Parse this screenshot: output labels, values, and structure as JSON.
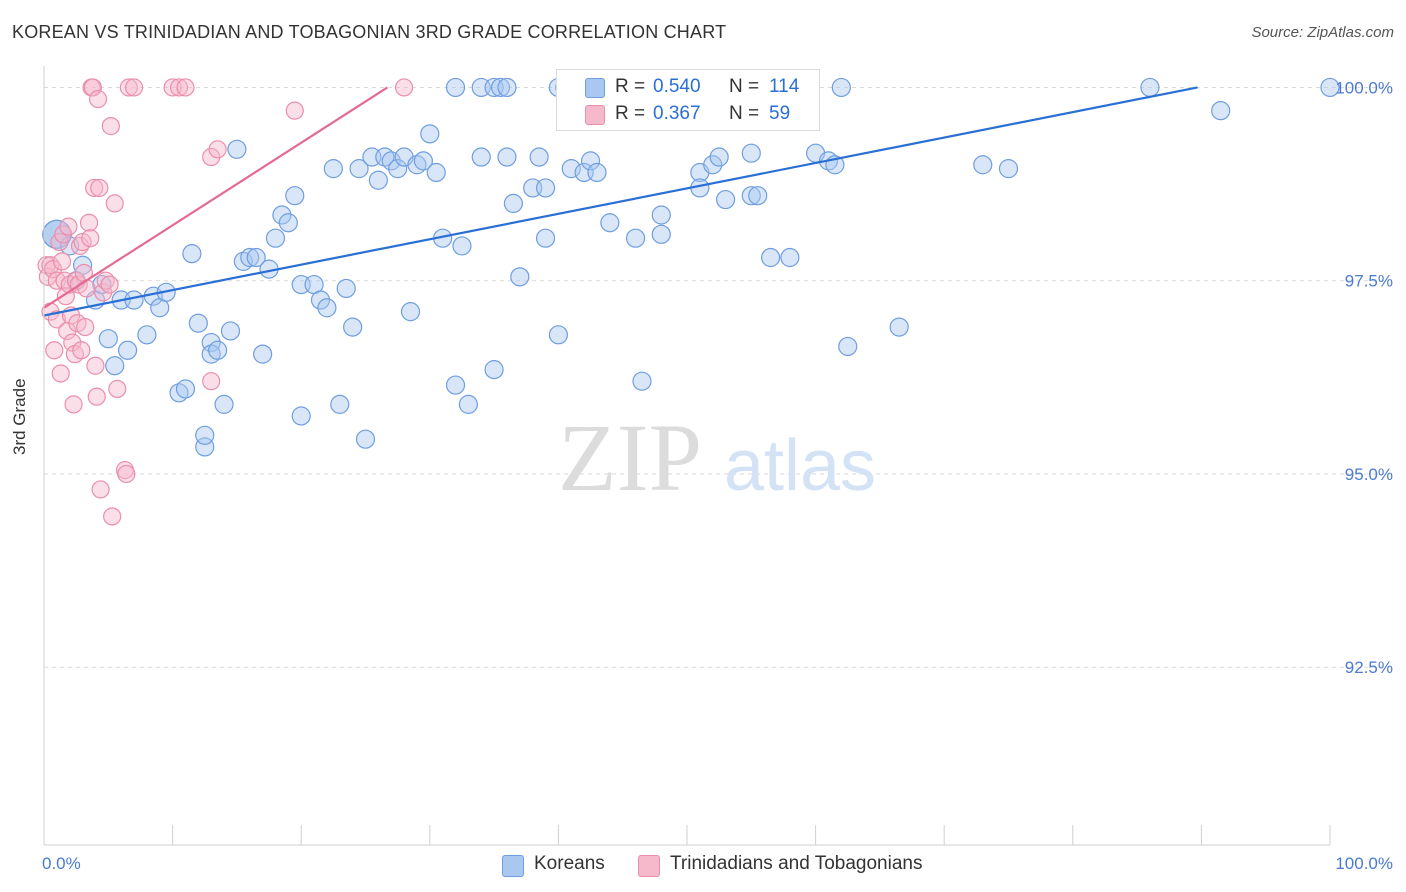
{
  "header": {
    "title": "KOREAN VS TRINIDADIAN AND TOBAGONIAN 3RD GRADE CORRELATION CHART",
    "source": "Source: ZipAtlas.com"
  },
  "watermark": {
    "zip": "ZIP",
    "atlas": "atlas"
  },
  "legend_top": {
    "rows": [
      {
        "r_label": "R =",
        "r_value": "0.540",
        "n_label": "N =",
        "n_value": "114"
      },
      {
        "r_label": "R =",
        "r_value": "0.367",
        "n_label": "N =",
        "n_value": "59"
      }
    ]
  },
  "legend_bottom": {
    "items": [
      "Koreans",
      "Trinidadians and Tobagonians"
    ]
  },
  "colors": {
    "koreans_fill": "#a9c8f0",
    "koreans_stroke": "#6f9ee0",
    "koreans_line": "#2a6fd6",
    "trin_fill": "#f6b8cb",
    "trin_stroke": "#ea8fab",
    "trin_line": "#e36a93",
    "grid": "#d9d9d9",
    "tick_text": "#4a7bd0"
  },
  "chart_data": {
    "type": "scatter",
    "title": "KOREAN VS TRINIDADIAN AND TOBAGONIAN 3RD GRADE CORRELATION CHART",
    "xlabel": "",
    "ylabel": "3rd Grade",
    "xlim": [
      0,
      100
    ],
    "ylim": [
      90.2,
      100.2
    ],
    "x_ticks": [
      0,
      100
    ],
    "x_tick_labels": [
      "0.0%",
      "100.0%"
    ],
    "y_ticks": [
      92.5,
      95.0,
      97.5,
      100.0
    ],
    "y_tick_labels": [
      "92.5%",
      "95.0%",
      "97.5%",
      "100.0%"
    ],
    "grid": true,
    "legend_placement": "top-center",
    "series": [
      {
        "name": "Koreans",
        "r": 0.54,
        "n": 114,
        "trend": [
          [
            0,
            97.05
          ],
          [
            89.7,
            100.0
          ]
        ],
        "points": [
          [
            1,
            98.1
          ],
          [
            1,
            98.1
          ],
          [
            1,
            98.1
          ],
          [
            2,
            97.95
          ],
          [
            2.5,
            97.5
          ],
          [
            3,
            97.7
          ],
          [
            4,
            97.25
          ],
          [
            4.5,
            97.45
          ],
          [
            5,
            96.75
          ],
          [
            5.5,
            96.4
          ],
          [
            6,
            97.25
          ],
          [
            6.5,
            96.6
          ],
          [
            7,
            97.25
          ],
          [
            8,
            96.8
          ],
          [
            8.5,
            97.3
          ],
          [
            9,
            97.15
          ],
          [
            9.5,
            97.35
          ],
          [
            10.5,
            96.05
          ],
          [
            11,
            96.1
          ],
          [
            11.5,
            97.85
          ],
          [
            12,
            96.95
          ],
          [
            13,
            96.7
          ],
          [
            12.5,
            95.35
          ],
          [
            12.5,
            95.5
          ],
          [
            13,
            96.55
          ],
          [
            13.5,
            96.6
          ],
          [
            14,
            95.9
          ],
          [
            14.5,
            96.85
          ],
          [
            15,
            99.2
          ],
          [
            15.5,
            97.75
          ],
          [
            16,
            97.8
          ],
          [
            16.5,
            97.8
          ],
          [
            17,
            96.55
          ],
          [
            17.5,
            97.65
          ],
          [
            18,
            98.05
          ],
          [
            18.5,
            98.35
          ],
          [
            19,
            98.25
          ],
          [
            19.5,
            98.6
          ],
          [
            20,
            97.45
          ],
          [
            20,
            95.75
          ],
          [
            21,
            97.45
          ],
          [
            21.5,
            97.25
          ],
          [
            22,
            97.15
          ],
          [
            22.5,
            98.95
          ],
          [
            23,
            95.9
          ],
          [
            23.5,
            97.4
          ],
          [
            24,
            96.9
          ],
          [
            24.5,
            98.95
          ],
          [
            25,
            95.45
          ],
          [
            25.5,
            99.1
          ],
          [
            26,
            98.8
          ],
          [
            26.5,
            99.1
          ],
          [
            27,
            99.05
          ],
          [
            27.5,
            98.95
          ],
          [
            28,
            99.1
          ],
          [
            28.5,
            97.1
          ],
          [
            29,
            99.0
          ],
          [
            29.5,
            99.05
          ],
          [
            30,
            99.4
          ],
          [
            30.5,
            98.9
          ],
          [
            31,
            98.05
          ],
          [
            32,
            100.0
          ],
          [
            32,
            96.15
          ],
          [
            32.5,
            97.95
          ],
          [
            33,
            95.9
          ],
          [
            34,
            99.1
          ],
          [
            34,
            100.0
          ],
          [
            35,
            100.0
          ],
          [
            35,
            96.35
          ],
          [
            35.5,
            100.0
          ],
          [
            36,
            100.0
          ],
          [
            36,
            99.1
          ],
          [
            36.5,
            98.5
          ],
          [
            37,
            97.55
          ],
          [
            38,
            98.7
          ],
          [
            38.5,
            99.1
          ],
          [
            39,
            98.7
          ],
          [
            39,
            98.05
          ],
          [
            40,
            100.0
          ],
          [
            40,
            96.8
          ],
          [
            40.5,
            100.0
          ],
          [
            41,
            98.95
          ],
          [
            42,
            98.9
          ],
          [
            42.5,
            99.05
          ],
          [
            43,
            98.9
          ],
          [
            44,
            98.25
          ],
          [
            45,
            100.0
          ],
          [
            46,
            98.05
          ],
          [
            46.5,
            96.2
          ],
          [
            47,
            100.0
          ],
          [
            48,
            98.35
          ],
          [
            48,
            98.1
          ],
          [
            50,
            100.0
          ],
          [
            51,
            98.9
          ],
          [
            51,
            98.7
          ],
          [
            52,
            99.0
          ],
          [
            52.5,
            99.1
          ],
          [
            53,
            98.55
          ],
          [
            55,
            99.15
          ],
          [
            55,
            98.6
          ],
          [
            55.5,
            98.6
          ],
          [
            56.5,
            97.8
          ],
          [
            57,
            100.0
          ],
          [
            58,
            97.8
          ],
          [
            60,
            99.15
          ],
          [
            61,
            99.05
          ],
          [
            61.5,
            99.0
          ],
          [
            62,
            100.0
          ],
          [
            62.5,
            96.65
          ],
          [
            66.5,
            96.9
          ],
          [
            73,
            99.0
          ],
          [
            75,
            98.95
          ],
          [
            86,
            100.0
          ],
          [
            91.5,
            99.7
          ],
          [
            100,
            100.0
          ]
        ]
      },
      {
        "name": "Trinidadians and Tobagonians",
        "r": 0.367,
        "n": 59,
        "trend": [
          [
            0,
            97.15
          ],
          [
            26.7,
            100.0
          ]
        ],
        "points": [
          [
            0.2,
            97.7
          ],
          [
            0.3,
            97.55
          ],
          [
            0.5,
            97.7
          ],
          [
            0.5,
            97.1
          ],
          [
            0.7,
            97.65
          ],
          [
            0.8,
            96.6
          ],
          [
            1,
            97.5
          ],
          [
            1,
            97.0
          ],
          [
            1.2,
            98.0
          ],
          [
            1.3,
            96.3
          ],
          [
            1.4,
            97.75
          ],
          [
            1.5,
            98.1
          ],
          [
            1.6,
            97.5
          ],
          [
            1.7,
            97.3
          ],
          [
            1.8,
            96.85
          ],
          [
            1.9,
            98.2
          ],
          [
            2,
            97.45
          ],
          [
            2.1,
            97.05
          ],
          [
            2.2,
            96.7
          ],
          [
            2.3,
            95.9
          ],
          [
            2.4,
            96.55
          ],
          [
            2.5,
            97.5
          ],
          [
            2.6,
            96.95
          ],
          [
            2.7,
            97.45
          ],
          [
            2.8,
            97.95
          ],
          [
            2.9,
            96.6
          ],
          [
            3,
            98.0
          ],
          [
            3.1,
            97.6
          ],
          [
            3.2,
            96.9
          ],
          [
            3.3,
            97.4
          ],
          [
            3.5,
            98.25
          ],
          [
            3.6,
            98.05
          ],
          [
            3.7,
            100.0
          ],
          [
            3.8,
            100.0
          ],
          [
            3.9,
            98.7
          ],
          [
            4,
            96.4
          ],
          [
            4.1,
            96.0
          ],
          [
            4.2,
            99.85
          ],
          [
            4.3,
            98.7
          ],
          [
            4.4,
            94.8
          ],
          [
            4.6,
            97.35
          ],
          [
            4.8,
            97.5
          ],
          [
            5.1,
            97.45
          ],
          [
            5.2,
            99.5
          ],
          [
            5.3,
            94.45
          ],
          [
            5.5,
            98.5
          ],
          [
            5.7,
            96.1
          ],
          [
            6.3,
            95.05
          ],
          [
            6.4,
            95.0
          ],
          [
            6.6,
            100.0
          ],
          [
            7,
            100.0
          ],
          [
            10,
            100.0
          ],
          [
            10.5,
            100.0
          ],
          [
            11,
            100.0
          ],
          [
            13,
            99.1
          ],
          [
            13.5,
            99.2
          ],
          [
            13,
            96.2
          ],
          [
            19.5,
            99.7
          ],
          [
            28,
            100.0
          ]
        ]
      }
    ]
  }
}
